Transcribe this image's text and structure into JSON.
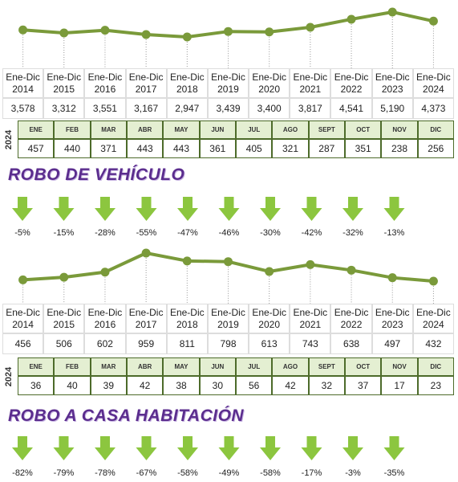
{
  "chart_data": [
    {
      "type": "line",
      "color": "#7a9a3a",
      "categories": [
        "Ene-Dic\n2014",
        "Ene-Dic\n2015",
        "Ene-Dic\n2016",
        "Ene-Dic\n2017",
        "Ene-Dic\n2018",
        "Ene-Dic\n2019",
        "Ene-Dic\n2020",
        "Ene-Dic\n2021",
        "Ene-Dic\n2022",
        "Ene-Dic\n2023",
        "Ene-Dic\n2024"
      ],
      "values": [
        3578,
        3312,
        3551,
        3167,
        2947,
        3439,
        3400,
        3817,
        4541,
        5190,
        4373
      ],
      "value_labels": [
        "3,578",
        "3,312",
        "3,551",
        "3,167",
        "2,947",
        "3,439",
        "3,400",
        "3,817",
        "4,541",
        "5,190",
        "4,373"
      ]
    },
    {
      "type": "line",
      "color": "#7a9a3a",
      "categories": [
        "Ene-Dic\n2014",
        "Ene-Dic\n2015",
        "Ene-Dic\n2016",
        "Ene-Dic\n2017",
        "Ene-Dic\n2018",
        "Ene-Dic\n2019",
        "Ene-Dic\n2020",
        "Ene-Dic\n2021",
        "Ene-Dic\n2022",
        "Ene-Dic\n2023",
        "Ene-Dic\n2024"
      ],
      "values": [
        456,
        506,
        602,
        959,
        811,
        798,
        613,
        743,
        638,
        497,
        432
      ]
    }
  ],
  "monthly": [
    {
      "year": "2024",
      "months": [
        "ENE",
        "FEB",
        "MAR",
        "ABR",
        "MAY",
        "JUN",
        "JUL",
        "AGO",
        "SEPT",
        "OCT",
        "NOV",
        "DIC"
      ],
      "values": [
        457,
        440,
        371,
        443,
        443,
        361,
        405,
        321,
        287,
        351,
        238,
        256
      ]
    },
    {
      "year": "2024",
      "months": [
        "ENE",
        "FEB",
        "MAR",
        "ABR",
        "MAY",
        "JUN",
        "JUL",
        "AGO",
        "SEPT",
        "OCT",
        "NOV",
        "DIC"
      ],
      "values": [
        36,
        40,
        39,
        42,
        38,
        30,
        56,
        42,
        32,
        37,
        17,
        23
      ]
    }
  ],
  "sections": [
    {
      "title": "ROBO DE VEHÍCULO",
      "changes": [
        -5,
        -15,
        -28,
        -55,
        -47,
        -46,
        -30,
        -42,
        -32,
        -13
      ],
      "change_labels": [
        "-5%",
        "-15%",
        "-28%",
        "-55%",
        "-47%",
        "-46%",
        "-30%",
        "-42%",
        "-32%",
        "-13%"
      ]
    },
    {
      "title": "ROBO A CASA HABITACIÓN",
      "changes": [
        -82,
        -79,
        -78,
        -67,
        -58,
        -49,
        -58,
        -17,
        -3,
        -35
      ],
      "change_labels": [
        "-82%",
        "-79%",
        "-78%",
        "-67%",
        "-58%",
        "-49%",
        "-58%",
        "-17%",
        "-3%",
        "-35%"
      ]
    }
  ]
}
